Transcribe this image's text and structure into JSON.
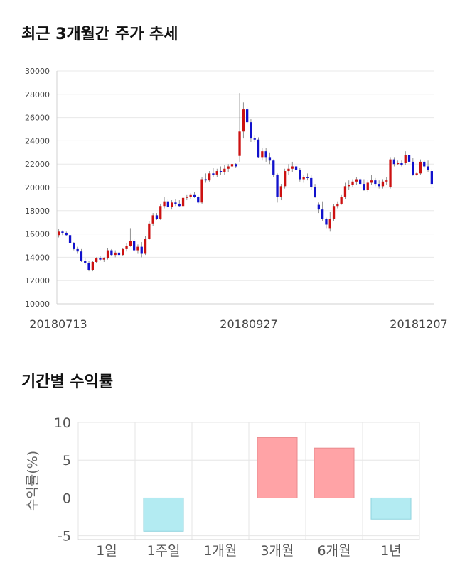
{
  "sections": {
    "price_title": "최근 3개월간 주가 추세",
    "return_title": "기간별 수익률"
  },
  "chart_data": [
    {
      "type": "candlestick",
      "title": "최근 3개월간 주가 추세",
      "y_ticks": [
        10000,
        12000,
        14000,
        16000,
        18000,
        20000,
        22000,
        24000,
        26000,
        28000,
        30000
      ],
      "ylim": [
        10000,
        30000
      ],
      "grid": true,
      "x_labels": [
        "20180713",
        "20180927",
        "20181207"
      ],
      "up_color": "#cc1111",
      "down_color": "#1111cc",
      "candles": [
        [
          15900,
          16400,
          15700,
          16200
        ],
        [
          16200,
          16300,
          15900,
          16100
        ],
        [
          16100,
          16200,
          15800,
          15900
        ],
        [
          15900,
          15900,
          15100,
          15200
        ],
        [
          15200,
          15300,
          14600,
          14700
        ],
        [
          14700,
          14900,
          14300,
          14500
        ],
        [
          14500,
          14700,
          13600,
          13700
        ],
        [
          13700,
          13900,
          13300,
          13500
        ],
        [
          13500,
          13700,
          12800,
          12900
        ],
        [
          12900,
          13700,
          12800,
          13600
        ],
        [
          13600,
          14000,
          13500,
          13900
        ],
        [
          13900,
          14100,
          13700,
          13800
        ],
        [
          13800,
          14000,
          13600,
          13900
        ],
        [
          13900,
          14800,
          13800,
          14600
        ],
        [
          14600,
          14700,
          14100,
          14200
        ],
        [
          14200,
          14600,
          14000,
          14400
        ],
        [
          14400,
          14700,
          14100,
          14200
        ],
        [
          14200,
          14800,
          14100,
          14700
        ],
        [
          14700,
          15200,
          14500,
          15000
        ],
        [
          15000,
          16500,
          14900,
          15400
        ],
        [
          15400,
          15600,
          14500,
          14600
        ],
        [
          14600,
          15100,
          14300,
          14900
        ],
        [
          14900,
          15300,
          14000,
          14300
        ],
        [
          14300,
          15800,
          14200,
          15600
        ],
        [
          15600,
          17100,
          15500,
          16900
        ],
        [
          16900,
          17800,
          16700,
          17600
        ],
        [
          17600,
          17800,
          17200,
          17300
        ],
        [
          17300,
          18600,
          17200,
          18400
        ],
        [
          18400,
          19200,
          18200,
          18800
        ],
        [
          18800,
          19000,
          18200,
          18300
        ],
        [
          18300,
          18900,
          18100,
          18700
        ],
        [
          18700,
          19000,
          18400,
          18600
        ],
        [
          18600,
          18900,
          18300,
          18400
        ],
        [
          18400,
          19300,
          18300,
          19100
        ],
        [
          19100,
          19400,
          18900,
          19200
        ],
        [
          19200,
          19500,
          19000,
          19400
        ],
        [
          19400,
          19600,
          19100,
          19200
        ],
        [
          19200,
          19300,
          18600,
          18700
        ],
        [
          18700,
          20900,
          18600,
          20700
        ],
        [
          20700,
          21200,
          20400,
          20600
        ],
        [
          20600,
          21400,
          20500,
          21200
        ],
        [
          21200,
          21700,
          20900,
          21100
        ],
        [
          21100,
          21600,
          20900,
          21400
        ],
        [
          21400,
          21800,
          21100,
          21300
        ],
        [
          21300,
          21900,
          21100,
          21600
        ],
        [
          21600,
          22000,
          21300,
          21800
        ],
        [
          21800,
          22100,
          21600,
          22000
        ],
        [
          22000,
          22100,
          21700,
          21800
        ],
        [
          22700,
          28100,
          22200,
          24800
        ],
        [
          24800,
          27300,
          24200,
          26700
        ],
        [
          26700,
          26900,
          25400,
          25600
        ],
        [
          25600,
          25900,
          23900,
          24200
        ],
        [
          24200,
          24500,
          23900,
          24100
        ],
        [
          24100,
          24300,
          22500,
          22600
        ],
        [
          22600,
          23400,
          22300,
          23100
        ],
        [
          23100,
          23400,
          22200,
          22600
        ],
        [
          22600,
          23000,
          22000,
          22300
        ],
        [
          22300,
          22400,
          20900,
          21100
        ],
        [
          21100,
          21200,
          18700,
          19200
        ],
        [
          19200,
          20300,
          18900,
          20100
        ],
        [
          20100,
          21600,
          19900,
          21400
        ],
        [
          21400,
          22000,
          21100,
          21600
        ],
        [
          21600,
          22200,
          21300,
          21800
        ],
        [
          21800,
          22100,
          21300,
          21500
        ],
        [
          21500,
          21700,
          20500,
          20700
        ],
        [
          20700,
          21100,
          20400,
          20900
        ],
        [
          20900,
          21200,
          20600,
          20800
        ],
        [
          20800,
          21100,
          19800,
          20000
        ],
        [
          20000,
          20300,
          19100,
          19200
        ],
        [
          18500,
          18700,
          17800,
          18100
        ],
        [
          18100,
          18800,
          17100,
          17300
        ],
        [
          17300,
          17400,
          16500,
          16800
        ],
        [
          16500,
          17900,
          16200,
          17300
        ],
        [
          17300,
          18600,
          17100,
          18400
        ],
        [
          18400,
          18800,
          18200,
          18600
        ],
        [
          18600,
          19400,
          18500,
          19200
        ],
        [
          19200,
          20400,
          19000,
          20100
        ],
        [
          20100,
          20600,
          19800,
          20200
        ],
        [
          20200,
          20700,
          20000,
          20500
        ],
        [
          20500,
          20900,
          20200,
          20700
        ],
        [
          20700,
          20800,
          20200,
          20300
        ],
        [
          20300,
          20700,
          19700,
          19800
        ],
        [
          19800,
          20600,
          19600,
          20400
        ],
        [
          20400,
          21100,
          20200,
          20600
        ],
        [
          20600,
          20800,
          20100,
          20300
        ],
        [
          20300,
          20600,
          19900,
          20100
        ],
        [
          20100,
          20700,
          19900,
          20500
        ],
        [
          20500,
          20900,
          20200,
          20600
        ],
        [
          20000,
          22600,
          19900,
          22400
        ],
        [
          22400,
          22600,
          21800,
          22000
        ],
        [
          22000,
          22300,
          21900,
          22100
        ],
        [
          22100,
          22300,
          21800,
          21900
        ],
        [
          22100,
          23100,
          21900,
          22800
        ],
        [
          22800,
          23000,
          21900,
          22200
        ],
        [
          22200,
          22500,
          21000,
          21100
        ],
        [
          21100,
          21300,
          21000,
          21200
        ],
        [
          21200,
          22400,
          21100,
          22200
        ],
        [
          22200,
          22300,
          21700,
          21800
        ],
        [
          21800,
          22300,
          21300,
          21500
        ],
        [
          21400,
          21600,
          20100,
          20300
        ]
      ]
    },
    {
      "type": "bar",
      "title": "기간별 수익률",
      "ylabel": "수익률(%)",
      "categories": [
        "1일",
        "1주일",
        "1개월",
        "3개월",
        "6개월",
        "1년"
      ],
      "values": [
        0,
        -4.4,
        0,
        8.0,
        6.6,
        -2.8
      ],
      "y_ticks": [
        10,
        5,
        0,
        -5
      ],
      "ylim": [
        -5.5,
        10
      ],
      "grid": true,
      "positive_color": "#ffa3a6",
      "negative_color": "#b3ebf2"
    }
  ]
}
